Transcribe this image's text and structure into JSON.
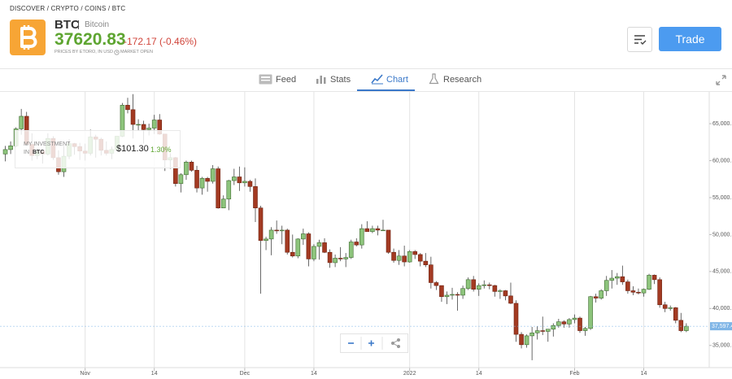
{
  "breadcrumb": "DISCOVER / CRYPTO / COINS / BTC",
  "instrument": {
    "symbol": "BTC",
    "name": "Bitcoin",
    "price": "37620.83",
    "change": "-172.17 (-0.46%)",
    "source": "PRICES BY ETORO, IN USD",
    "status": "MARKET OPEN"
  },
  "actions": {
    "trade": "Trade"
  },
  "tabs": [
    "Feed",
    "Stats",
    "Chart",
    "Research"
  ],
  "investment": {
    "label": "MY INVESTMENT",
    "prefix": "IN",
    "asset": "BTC",
    "value": "$101.30",
    "change": "1.30%"
  },
  "chart_data": {
    "type": "candlestick",
    "x": [
      -15,
      -14,
      -13,
      -12,
      -11,
      -10,
      -9,
      -8,
      -7,
      -6,
      -5,
      -4,
      -3,
      -2,
      -1,
      0,
      1,
      2,
      3,
      4,
      5,
      6,
      7,
      8,
      9,
      10,
      11,
      12,
      13,
      14,
      15,
      16,
      17,
      18,
      19,
      20,
      21,
      22,
      23,
      24,
      25,
      26,
      27,
      28,
      29,
      30,
      31,
      32,
      33,
      34,
      35,
      36,
      37,
      38,
      39,
      40,
      41,
      42,
      43,
      44,
      45,
      46,
      47,
      48,
      49,
      50,
      51,
      52,
      53,
      54,
      55,
      56,
      57,
      58,
      59,
      60,
      61,
      62,
      63,
      64,
      65,
      66,
      67,
      68,
      69,
      70,
      71,
      72,
      73,
      74,
      75,
      76,
      77,
      78,
      79,
      80,
      81,
      82,
      83,
      84,
      85,
      86,
      87,
      88,
      89,
      90,
      91,
      92,
      93,
      94,
      95,
      96,
      97,
      98,
      99,
      100,
      101,
      102,
      103,
      104,
      105,
      106,
      107,
      108,
      109,
      110,
      111,
      112,
      113
    ],
    "open": [
      60900,
      61500,
      62000,
      64300,
      66000,
      62200,
      60700,
      61300,
      60900,
      63000,
      60400,
      58500,
      60600,
      62300,
      61900,
      61300,
      61000,
      63200,
      62900,
      61400,
      61000,
      61500,
      63300,
      67500,
      66900,
      64900,
      64900,
      64200,
      64400,
      65500,
      63600,
      60100,
      60400,
      56900,
      58100,
      59800,
      58700,
      56300,
      57600,
      57200,
      58900,
      53600,
      54800,
      57300,
      57800,
      57000,
      57200,
      56500,
      53600,
      49200,
      49400,
      50600,
      50500,
      50600,
      47600,
      47100,
      49400,
      50100,
      46700,
      48400,
      48900,
      47600,
      46200,
      46800,
      46700,
      46900,
      49000,
      48600,
      50800,
      50400,
      50800,
      50600,
      50600,
      47600,
      46500,
      47100,
      46300,
      47700,
      47300,
      46400,
      45900,
      43500,
      43100,
      41600,
      41800,
      41900,
      41800,
      42700,
      43900,
      42600,
      43100,
      43200,
      43100,
      42300,
      42400,
      41700,
      40700,
      36500,
      35100,
      36300,
      36700,
      37000,
      36900,
      37200,
      37700,
      38200,
      37900,
      38500,
      38700,
      37000,
      37300,
      41600,
      41400,
      42400,
      43800,
      44100,
      44300,
      43600,
      42400,
      42200,
      42100,
      42600,
      44500,
      43900,
      40500,
      40000,
      40100,
      38400,
      37000
    ],
    "high": [
      62000,
      62600,
      64500,
      67000,
      66600,
      63700,
      61700,
      61500,
      63700,
      63300,
      61400,
      62000,
      62900,
      62400,
      62400,
      62300,
      64200,
      63500,
      63100,
      62600,
      61900,
      63300,
      67800,
      68500,
      69000,
      65600,
      65400,
      65000,
      66200,
      66300,
      63600,
      61000,
      60500,
      58300,
      60000,
      60000,
      59300,
      57800,
      57800,
      59400,
      59200,
      55300,
      57400,
      58900,
      59200,
      59100,
      57400,
      57600,
      53900,
      49700,
      51000,
      51900,
      51200,
      50800,
      50000,
      49500,
      50800,
      50300,
      48700,
      49300,
      49500,
      48000,
      47300,
      48300,
      47500,
      49300,
      49500,
      51400,
      51800,
      51200,
      51200,
      52000,
      50600,
      48100,
      47900,
      48500,
      47900,
      47900,
      47500,
      47500,
      47000,
      43700,
      43100,
      42300,
      42800,
      42200,
      43100,
      44200,
      44400,
      43400,
      43800,
      43500,
      43200,
      42600,
      42500,
      43500,
      41100,
      36800,
      36500,
      37500,
      37600,
      38900,
      37200,
      38000,
      38600,
      38400,
      38700,
      39200,
      38900,
      37500,
      41700,
      42000,
      42600,
      44400,
      45200,
      44800,
      45800,
      43900,
      43000,
      42700,
      42700,
      44700,
      44600,
      44200,
      40900,
      40400,
      40200,
      39400,
      38000
    ],
    "low": [
      59900,
      60900,
      61800,
      63500,
      62000,
      60000,
      60200,
      59600,
      60700,
      60100,
      58100,
      57800,
      60200,
      60800,
      60100,
      60000,
      60700,
      60400,
      60700,
      60700,
      60200,
      61300,
      63200,
      66400,
      63000,
      64100,
      62300,
      63400,
      63600,
      63500,
      58600,
      58900,
      56500,
      55700,
      57400,
      58500,
      55700,
      55400,
      55800,
      56900,
      53500,
      53600,
      53300,
      56700,
      55900,
      56500,
      55800,
      51700,
      42000,
      47900,
      47200,
      50100,
      48700,
      47300,
      46900,
      46800,
      48600,
      45700,
      46400,
      46600,
      47500,
      45500,
      45600,
      46400,
      45600,
      46700,
      48400,
      48100,
      50400,
      50200,
      49900,
      50500,
      47400,
      46200,
      45900,
      45700,
      46200,
      46700,
      45700,
      45600,
      42700,
      42500,
      40900,
      40600,
      41200,
      39700,
      41300,
      42500,
      42300,
      41700,
      42700,
      42600,
      41600,
      41300,
      41100,
      40600,
      35500,
      34600,
      34700,
      33000,
      35800,
      36400,
      35500,
      36200,
      37400,
      37400,
      37400,
      38000,
      36700,
      36300,
      37100,
      40800,
      41200,
      41700,
      42700,
      43200,
      43200,
      42000,
      41800,
      41900,
      41600,
      42500,
      43300,
      40100,
      39500,
      39700,
      38000,
      36800,
      36800
    ],
    "close": [
      61500,
      62000,
      64300,
      66000,
      62200,
      60700,
      61300,
      60900,
      63000,
      60400,
      58500,
      60600,
      62300,
      61900,
      61300,
      61000,
      63200,
      62900,
      61400,
      61000,
      61500,
      63300,
      67500,
      66900,
      64900,
      64900,
      64200,
      64400,
      65500,
      63600,
      60100,
      60400,
      56900,
      58100,
      59800,
      58700,
      56300,
      57600,
      57200,
      58900,
      53600,
      54800,
      57300,
      57800,
      57000,
      57200,
      56500,
      53600,
      49200,
      49400,
      50600,
      50500,
      50600,
      47600,
      47100,
      49400,
      50100,
      46700,
      48400,
      48900,
      47600,
      46200,
      46800,
      46700,
      46900,
      49000,
      48600,
      50800,
      50400,
      50800,
      50600,
      50600,
      47600,
      46500,
      47100,
      46300,
      47700,
      47300,
      46400,
      45900,
      43500,
      43100,
      41600,
      41800,
      41900,
      41800,
      42700,
      43900,
      42600,
      43100,
      43200,
      43100,
      42300,
      42400,
      41700,
      40700,
      36500,
      35100,
      36300,
      36700,
      37000,
      36900,
      37200,
      37700,
      38200,
      37900,
      38500,
      38700,
      37000,
      37300,
      41600,
      41400,
      42400,
      43800,
      44100,
      44300,
      43600,
      42400,
      42200,
      42100,
      42600,
      44500,
      43900,
      40500,
      40000,
      40100,
      38400,
      37000,
      37600
    ],
    "up_color": "#8dc47c",
    "down_color": "#a33a22",
    "xlim": [
      -16,
      117
    ],
    "xticks": [
      {
        "value": 0,
        "label": "Nov"
      },
      {
        "value": 13,
        "label": "14"
      },
      {
        "value": 30,
        "label": "Dec"
      },
      {
        "value": 43,
        "label": "14"
      },
      {
        "value": 61,
        "label": "2022"
      },
      {
        "value": 74,
        "label": "14"
      },
      {
        "value": 92,
        "label": "Feb"
      },
      {
        "value": 105,
        "label": "14"
      }
    ],
    "ylim": [
      32000,
      69300
    ],
    "yticks": [
      {
        "value": 35000,
        "label": "35,000."
      },
      {
        "value": 40000,
        "label": "40,000."
      },
      {
        "value": 45000,
        "label": "45,000."
      },
      {
        "value": 50000,
        "label": "50,000."
      },
      {
        "value": 55000,
        "label": "55,000."
      },
      {
        "value": 60000,
        "label": "60,000."
      },
      {
        "value": 65000,
        "label": "65,000."
      }
    ],
    "price_marker": {
      "value": 37597.4,
      "label": "37,597.4"
    },
    "grid": "x"
  }
}
